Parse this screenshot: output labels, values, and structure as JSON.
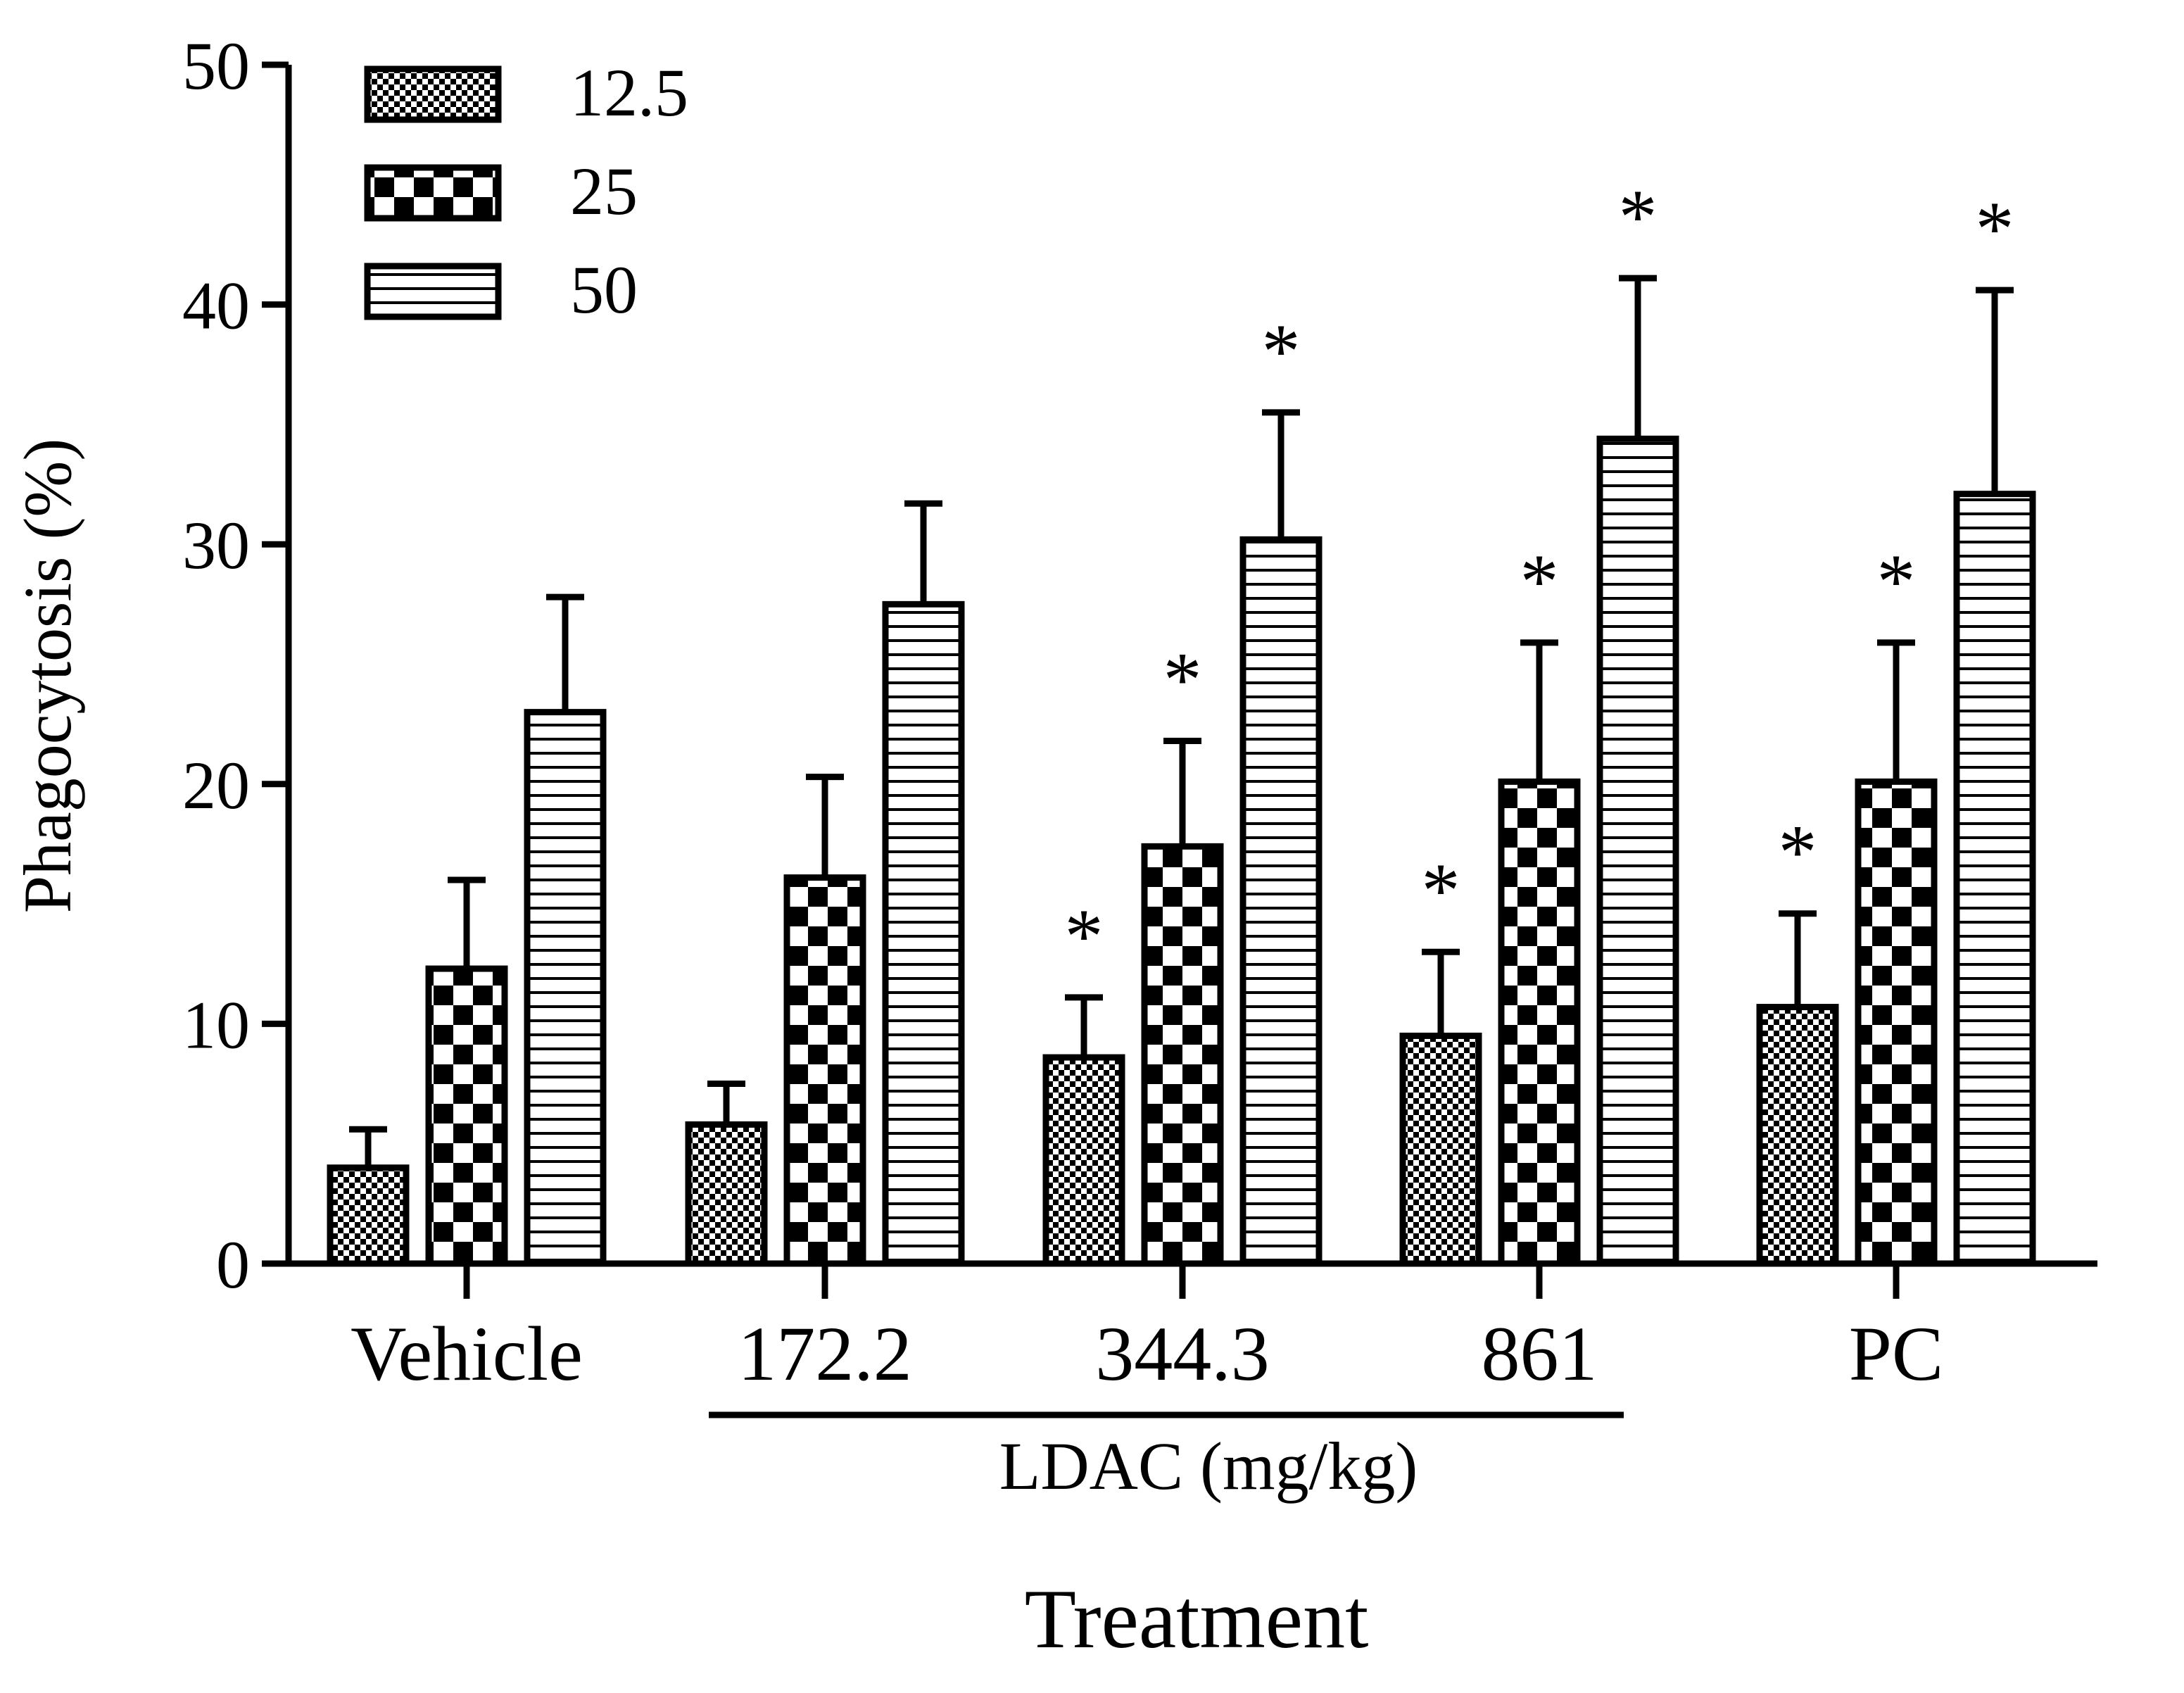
{
  "chart_data": {
    "type": "bar",
    "title": "",
    "xlabel": "Treatment",
    "ylabel": "Phagocytosis (%)",
    "ylim": [
      0,
      50
    ],
    "yticks": [
      0,
      10,
      20,
      30,
      40,
      50
    ],
    "grid": false,
    "legend_position": "top-left",
    "categories": [
      "Vehicle",
      "172.2",
      "344.3",
      "861",
      "PC"
    ],
    "group_label": {
      "text": "LDAC (mg/kg)",
      "spans": [
        "172.2",
        "344.3",
        "861"
      ]
    },
    "series": [
      {
        "name": "12.5",
        "pattern": "fine-checker",
        "values": [
          4.0,
          5.8,
          8.6,
          9.5,
          10.7
        ],
        "errors": [
          1.6,
          1.7,
          2.5,
          3.5,
          3.9
        ],
        "significant": [
          false,
          false,
          true,
          true,
          true
        ]
      },
      {
        "name": "25",
        "pattern": "coarse-checker",
        "values": [
          12.3,
          16.1,
          17.4,
          20.1,
          20.1
        ],
        "errors": [
          3.7,
          4.2,
          4.4,
          5.8,
          5.8
        ],
        "significant": [
          false,
          false,
          true,
          true,
          true
        ]
      },
      {
        "name": "50",
        "pattern": "horizontal-stripes",
        "values": [
          23.0,
          27.5,
          30.2,
          34.4,
          32.1
        ],
        "errors": [
          4.8,
          4.2,
          5.3,
          6.7,
          8.5
        ],
        "significant": [
          false,
          false,
          true,
          true,
          true
        ]
      }
    ],
    "significance_marker": "*",
    "colors": {
      "ink": "#000000",
      "background": "#ffffff"
    }
  }
}
